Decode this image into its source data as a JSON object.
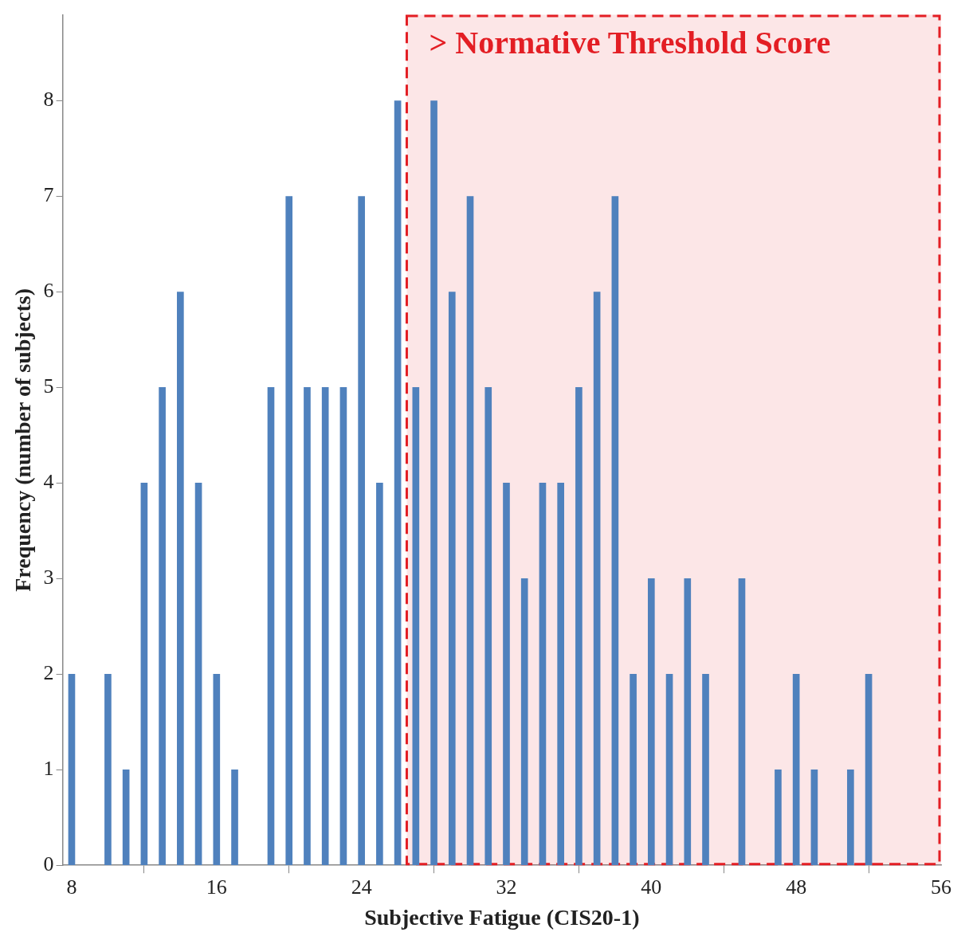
{
  "chart_data": {
    "type": "bar",
    "xlabel": "Subjective Fatigue (CIS20-1)",
    "ylabel": "Frequency (number of subjects)",
    "x": [
      8,
      10,
      11,
      12,
      13,
      14,
      15,
      16,
      17,
      19,
      20,
      21,
      22,
      23,
      24,
      25,
      26,
      27,
      28,
      29,
      30,
      31,
      32,
      33,
      34,
      35,
      36,
      37,
      38,
      39,
      40,
      41,
      42,
      43,
      45,
      47,
      48,
      49,
      51,
      52
    ],
    "values": [
      2,
      2,
      1,
      4,
      5,
      6,
      4,
      2,
      1,
      5,
      7,
      5,
      5,
      5,
      7,
      4,
      8,
      5,
      8,
      6,
      7,
      5,
      4,
      3,
      4,
      4,
      5,
      6,
      7,
      2,
      3,
      2,
      3,
      2,
      3,
      1,
      2,
      1,
      1,
      2
    ],
    "color": "#4f81bd",
    "xlim": [
      7.5,
      56
    ],
    "xticks": [
      8,
      16,
      24,
      32,
      40,
      48,
      56
    ],
    "ylim": [
      0,
      8.9
    ],
    "yticks": [
      0,
      1,
      2,
      3,
      4,
      5,
      6,
      7,
      8
    ],
    "grid": false,
    "legend": false,
    "bands": [
      {
        "axis": "x",
        "from": 26.5,
        "to": 56,
        "label": "> Normative Threshold Score",
        "color": "#e31e24"
      }
    ]
  }
}
